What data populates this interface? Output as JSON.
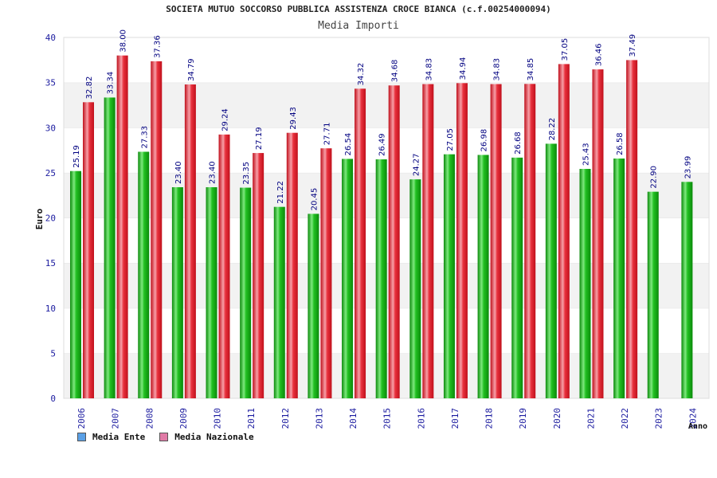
{
  "title": "SOCIETA MUTUO SOCCORSO PUBBLICA ASSISTENZA CROCE BIANCA (c.f.00254000094)",
  "subtitle": "Media Importi",
  "colors": {
    "ente": "#1fb51f",
    "nazionale": "#e8313d",
    "legend_ente": "#5aa0e6",
    "legend_nazionale": "#e07aa6",
    "axis_text": "#1c1ca0",
    "label_text": "#000080"
  },
  "legend": {
    "ente": "Media Ente",
    "nazionale": "Media Nazionale"
  },
  "chart_data": {
    "type": "bar",
    "title": "SOCIETA MUTUO SOCCORSO PUBBLICA ASSISTENZA CROCE BIANCA (c.f.00254000094)",
    "subtitle": "Media Importi",
    "xlabel": "Anno",
    "ylabel": "Euro",
    "ylim": [
      0,
      40
    ],
    "yticks": [
      0,
      5,
      10,
      15,
      20,
      25,
      30,
      35,
      40
    ],
    "grid": true,
    "legend_position": "bottom-left",
    "categories": [
      "2006",
      "2007",
      "2008",
      "2009",
      "2010",
      "2011",
      "2012",
      "2013",
      "2014",
      "2015",
      "2016",
      "2017",
      "2018",
      "2019",
      "2020",
      "2021",
      "2022",
      "2023",
      "2024"
    ],
    "series": [
      {
        "name": "Media Ente",
        "values": [
          25.19,
          33.34,
          27.33,
          23.4,
          23.4,
          23.35,
          21.22,
          20.45,
          26.54,
          26.49,
          24.27,
          27.05,
          26.98,
          26.68,
          28.22,
          25.43,
          26.58,
          22.9,
          23.99
        ],
        "labels": [
          "25.19",
          "33.34",
          "27.33",
          "23.40",
          "23.40",
          "23.35",
          "21.22",
          "20.45",
          "26.54",
          "26.49",
          "24.27",
          "27.05",
          "26.98",
          "26.68",
          "28.22",
          "25.43",
          "26.58",
          "22.90",
          "23.99"
        ]
      },
      {
        "name": "Media Nazionale",
        "values": [
          32.82,
          38.0,
          37.36,
          34.79,
          29.24,
          27.19,
          29.43,
          27.71,
          34.32,
          34.68,
          34.83,
          34.94,
          34.83,
          34.85,
          37.05,
          36.46,
          37.49,
          null,
          null
        ],
        "labels": [
          "32.82",
          "38.00",
          "37.36",
          "34.79",
          "29.24",
          "27.19",
          "29.43",
          "27.71",
          "34.32",
          "34.68",
          "34.83",
          "34.94",
          "34.83",
          "34.85",
          "37.05",
          "36.46",
          "37.49",
          "",
          ""
        ]
      }
    ]
  }
}
